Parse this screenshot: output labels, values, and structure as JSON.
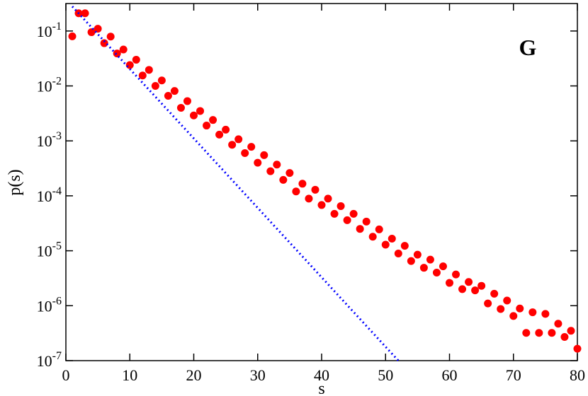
{
  "chart_data": {
    "type": "scatter",
    "annotation": "G",
    "xlabel": "s",
    "ylabel": "p(s)",
    "xlim": [
      0,
      80
    ],
    "xticks": [
      0,
      10,
      20,
      30,
      40,
      50,
      60,
      70,
      80
    ],
    "ylim": [
      1e-07,
      0.316
    ],
    "log_y": true,
    "yticks": [
      {
        "value": 1e-07,
        "label": "10^-7"
      },
      {
        "value": 1e-06,
        "label": "10^-6"
      },
      {
        "value": 1e-05,
        "label": "10^-5"
      },
      {
        "value": 0.0001,
        "label": "10^-4"
      },
      {
        "value": 0.001,
        "label": "10^-3"
      },
      {
        "value": 0.01,
        "label": "10^-2"
      },
      {
        "value": 0.1,
        "label": "10^-1"
      }
    ],
    "series": [
      {
        "kind": "points",
        "color": "#ff0000",
        "x": [
          1,
          2,
          3,
          4,
          5,
          6,
          7,
          8,
          9,
          10,
          11,
          12,
          13,
          14,
          15,
          16,
          17,
          18,
          19,
          20,
          21,
          22,
          23,
          24,
          25,
          26,
          27,
          28,
          29,
          30,
          31,
          32,
          33,
          34,
          35,
          36,
          37,
          38,
          39,
          40,
          41,
          42,
          43,
          44,
          45,
          46,
          47,
          48,
          49,
          50,
          51,
          52,
          53,
          54,
          55,
          56,
          57,
          58,
          59,
          60,
          61,
          62,
          63,
          64,
          65,
          66,
          67,
          68,
          69,
          70,
          71,
          72,
          73,
          74,
          75,
          76,
          77,
          78,
          79,
          80
        ],
        "values": [
          0.08,
          0.21,
          0.21,
          0.095,
          0.11,
          0.06,
          0.079,
          0.039,
          0.046,
          0.024,
          0.03,
          0.0155,
          0.0196,
          0.01,
          0.0126,
          0.0066,
          0.0081,
          0.004,
          0.0053,
          0.0029,
          0.0035,
          0.0019,
          0.0024,
          0.0013,
          0.0016,
          0.00085,
          0.00107,
          0.0006,
          0.00078,
          0.0004,
          0.00055,
          0.00028,
          0.00037,
          0.000195,
          0.00026,
          0.00012,
          0.000166,
          8.9e-05,
          0.000129,
          6.8e-05,
          8.9e-05,
          4.7e-05,
          6.5e-05,
          3.6e-05,
          4.7e-05,
          2.5e-05,
          3.4e-05,
          1.8e-05,
          2.45e-05,
          1.29e-05,
          1.66e-05,
          8.9e-06,
          1.23e-05,
          6.5e-06,
          8.5e-06,
          4.9e-06,
          6.9e-06,
          4e-06,
          5.2e-06,
          2.6e-06,
          3.7e-06,
          2e-06,
          2.7e-06,
          1.9e-06,
          2.3e-06,
          1.1e-06,
          1.65e-06,
          8.7e-07,
          1.24e-06,
          6.5e-07,
          8.9e-07,
          3.2e-07,
          7.6e-07,
          3.2e-07,
          7.1e-07,
          3.2e-07,
          4.7e-07,
          2.7e-07,
          3.5e-07,
          1.65e-07
        ]
      },
      {
        "kind": "dotted-line",
        "color": "#0000ff",
        "x": [
          1,
          52
        ],
        "values": [
          0.28,
          1e-07
        ]
      }
    ]
  }
}
